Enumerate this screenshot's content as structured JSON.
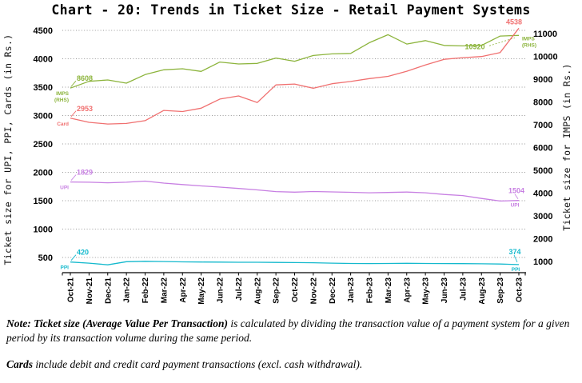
{
  "chart_data": {
    "type": "line",
    "title": "Chart - 20: Trends in Ticket Size - Retail Payment Systems",
    "x_labels": [
      "Oct-21",
      "Nov-21",
      "Dec-21",
      "Jan-22",
      "Feb-22",
      "Mar-22",
      "Apr-22",
      "May-22",
      "Jun-22",
      "Jul-22",
      "Aug-22",
      "Sep-22",
      "Oct-22",
      "Nov-22",
      "Dec-22",
      "Jan-23",
      "Feb-23",
      "Mar-23",
      "Apr-23",
      "May-23",
      "Jun-23",
      "Jul-23",
      "Aug-23",
      "Sep-23",
      "Oct-23"
    ],
    "y_axis_left": {
      "label": "Ticket size for UPI, PPI, Cards (in Rs.)",
      "ticks": [
        500,
        1000,
        1500,
        2000,
        2500,
        3000,
        3500,
        4000,
        4500
      ]
    },
    "y_axis_right": {
      "label": "Ticket size for IMPS (in Rs.)",
      "ticks": [
        1000,
        2000,
        3000,
        4000,
        5000,
        6000,
        7000,
        8000,
        9000,
        10000,
        11000
      ]
    },
    "grid": {
      "horizontal_dotted": true,
      "color": "#999999"
    },
    "legend": "inline labels at line start and end",
    "series": [
      {
        "name": "IMPS (RHS)",
        "axis": "right",
        "color": "#8CB43C",
        "first_value": 8608,
        "last_value": 10920,
        "values": [
          8608,
          8905,
          8965,
          8825,
          9200,
          9410,
          9455,
          9340,
          9750,
          9665,
          9690,
          9925,
          9785,
          10040,
          10110,
          10130,
          10600,
          10950,
          10540,
          10690,
          10480,
          10460,
          10480,
          10890,
          10920
        ]
      },
      {
        "name": "Card",
        "axis": "left",
        "color": "#F07070",
        "first_value": 2953,
        "last_value": 4538,
        "values": [
          2953,
          2880,
          2850,
          2860,
          2910,
          3090,
          3070,
          3130,
          3290,
          3345,
          3230,
          3540,
          3555,
          3480,
          3560,
          3600,
          3650,
          3690,
          3780,
          3890,
          3990,
          4020,
          4040,
          4110,
          4538
        ]
      },
      {
        "name": "UPI",
        "axis": "left",
        "color": "#C77FE2",
        "first_value": 1829,
        "last_value": 1504,
        "values": [
          1829,
          1825,
          1815,
          1825,
          1845,
          1810,
          1785,
          1760,
          1740,
          1715,
          1690,
          1660,
          1650,
          1662,
          1655,
          1648,
          1640,
          1645,
          1652,
          1640,
          1610,
          1590,
          1540,
          1495,
          1504
        ]
      },
      {
        "name": "PPI",
        "axis": "left",
        "color": "#14B9CD",
        "first_value": 420,
        "last_value": 374,
        "values": [
          420,
          400,
          370,
          425,
          432,
          428,
          422,
          420,
          418,
          416,
          415,
          413,
          410,
          407,
          400,
          395,
          393,
          395,
          397,
          395,
          393,
          391,
          389,
          384,
          374
        ]
      }
    ]
  },
  "notes": [
    {
      "bold": "Note: Ticket size (Average Value Per Transaction)",
      "text": " is calculated by dividing the transaction value of a payment system for a given period by its transaction volume during the same period."
    },
    {
      "bold": "Cards",
      "text": " include debit and credit card payment transactions (excl. cash withdrawal)."
    }
  ]
}
